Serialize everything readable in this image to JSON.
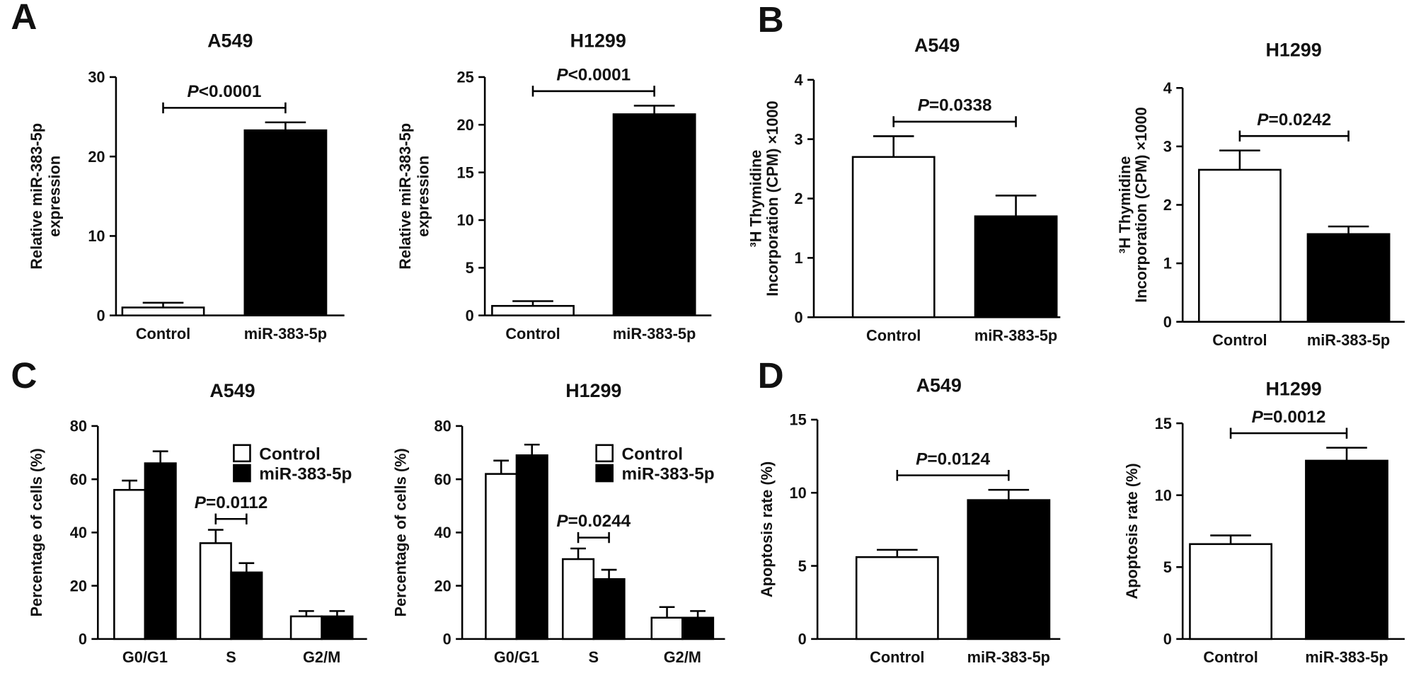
{
  "chart_data": [
    {
      "type": "bar",
      "panel": "A",
      "title": "A549",
      "ylabel": [
        "Relative miR-383-5p",
        "expression"
      ],
      "categories": [
        "Control",
        "miR-383-5p"
      ],
      "values": [
        1.0,
        23.3
      ],
      "errors": [
        0.6,
        1.0
      ],
      "colors": [
        "#ffffff",
        "#000000"
      ],
      "ylim": [
        0,
        30
      ],
      "yticks": [
        0,
        10,
        20,
        30
      ],
      "annotation": "P<0.0001"
    },
    {
      "type": "bar",
      "title": "H1299",
      "ylabel": [
        "Relative miR-383-5p",
        "expression"
      ],
      "categories": [
        "Control",
        "miR-383-5p"
      ],
      "values": [
        1.0,
        21.1
      ],
      "errors": [
        0.5,
        0.9
      ],
      "colors": [
        "#ffffff",
        "#000000"
      ],
      "ylim": [
        0,
        25
      ],
      "yticks": [
        0,
        5,
        10,
        15,
        20,
        25
      ],
      "annotation": "P<0.0001"
    },
    {
      "type": "bar",
      "panel": "B",
      "title": "A549",
      "ylabel": [
        "³H Thymidine",
        "Incorporation (CPM) ×1000"
      ],
      "categories": [
        "Control",
        "miR-383-5p"
      ],
      "values": [
        2.7,
        1.7
      ],
      "errors": [
        0.35,
        0.35
      ],
      "colors": [
        "#ffffff",
        "#000000"
      ],
      "ylim": [
        0,
        4
      ],
      "yticks": [
        0,
        1,
        2,
        3,
        4
      ],
      "annotation": "P=0.0338"
    },
    {
      "type": "bar",
      "title": "H1299",
      "ylabel": [
        "³H Thymidine",
        "Incorporation (CPM) ×1000"
      ],
      "categories": [
        "Control",
        "miR-383-5p"
      ],
      "values": [
        2.6,
        1.5
      ],
      "errors": [
        0.33,
        0.13
      ],
      "colors": [
        "#ffffff",
        "#000000"
      ],
      "ylim": [
        0,
        4
      ],
      "yticks": [
        0,
        1,
        2,
        3,
        4
      ],
      "annotation": "P=0.0242"
    },
    {
      "type": "bar",
      "panel": "C",
      "title": "A549",
      "ylabel": [
        "Percentage of cells (%)"
      ],
      "categories": [
        "G0/G1",
        "S",
        "G2/M"
      ],
      "series": [
        {
          "name": "Control",
          "color": "#ffffff",
          "values": [
            56,
            36,
            8.5
          ],
          "errors": [
            3.5,
            5,
            2
          ]
        },
        {
          "name": "miR-383-5p",
          "color": "#000000",
          "values": [
            66,
            25,
            8.5
          ],
          "errors": [
            4.5,
            3.5,
            2
          ]
        }
      ],
      "ylim": [
        0,
        80
      ],
      "yticks": [
        0,
        20,
        40,
        60,
        80
      ],
      "annotation": "P=0.0112"
    },
    {
      "type": "bar",
      "title": "H1299",
      "ylabel": [
        "Percentage of cells (%)"
      ],
      "categories": [
        "G0/G1",
        "S",
        "G2/M"
      ],
      "series": [
        {
          "name": "Control",
          "color": "#ffffff",
          "values": [
            62,
            30,
            8
          ],
          "errors": [
            5,
            4,
            4
          ]
        },
        {
          "name": "miR-383-5p",
          "color": "#000000",
          "values": [
            69,
            22.5,
            8
          ],
          "errors": [
            4,
            3.5,
            2.5
          ]
        }
      ],
      "ylim": [
        0,
        80
      ],
      "yticks": [
        0,
        20,
        40,
        60,
        80
      ],
      "annotation": "P=0.0244"
    },
    {
      "type": "bar",
      "panel": "D",
      "title": "A549",
      "ylabel": [
        "Apoptosis rate (%)"
      ],
      "categories": [
        "Control",
        "miR-383-5p"
      ],
      "values": [
        5.6,
        9.5
      ],
      "errors": [
        0.5,
        0.7
      ],
      "colors": [
        "#ffffff",
        "#000000"
      ],
      "ylim": [
        0,
        15
      ],
      "yticks": [
        0,
        5,
        10,
        15
      ],
      "annotation": "P=0.0124"
    },
    {
      "type": "bar",
      "title": "H1299",
      "ylabel": [
        "Apoptosis rate (%)"
      ],
      "categories": [
        "Control",
        "miR-383-5p"
      ],
      "values": [
        6.6,
        12.4
      ],
      "errors": [
        0.6,
        0.9
      ],
      "colors": [
        "#ffffff",
        "#000000"
      ],
      "ylim": [
        0,
        15
      ],
      "yticks": [
        0,
        5,
        10,
        15
      ],
      "annotation": "P=0.0012"
    }
  ]
}
